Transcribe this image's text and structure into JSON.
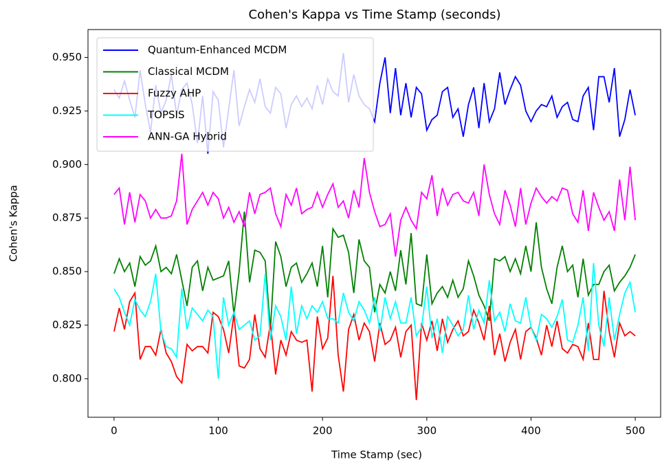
{
  "chart_data": {
    "type": "line",
    "title": "Cohen's Kappa vs Time Stamp (seconds)",
    "x_label": "Time Stamp (sec)",
    "y_label": "Cohen's Kappa",
    "x": [
      0,
      5,
      10,
      15,
      20,
      25,
      30,
      35,
      40,
      45,
      50,
      55,
      60,
      65,
      70,
      75,
      80,
      85,
      90,
      95,
      100,
      105,
      110,
      115,
      120,
      125,
      130,
      135,
      140,
      145,
      150,
      155,
      160,
      165,
      170,
      175,
      180,
      185,
      190,
      195,
      200,
      205,
      210,
      215,
      220,
      225,
      230,
      235,
      240,
      245,
      250,
      255,
      260,
      265,
      270,
      275,
      280,
      285,
      290,
      295,
      300,
      305,
      310,
      315,
      320,
      325,
      330,
      335,
      340,
      345,
      350,
      355,
      360,
      365,
      370,
      375,
      380,
      385,
      390,
      395,
      400,
      405,
      410,
      415,
      420,
      425,
      430,
      435,
      440,
      445,
      450,
      455,
      460,
      465,
      470,
      475,
      480,
      485,
      490,
      495,
      500
    ],
    "series": [
      {
        "name": "Quantum-Enhanced MCDM",
        "color": "#0000ff",
        "values": [
          0.935,
          0.931,
          0.939,
          0.93,
          0.922,
          0.944,
          0.928,
          0.915,
          0.937,
          0.924,
          0.93,
          0.942,
          0.923,
          0.935,
          0.938,
          0.928,
          0.91,
          0.932,
          0.905,
          0.934,
          0.93,
          0.908,
          0.926,
          0.944,
          0.918,
          0.927,
          0.935,
          0.929,
          0.94,
          0.927,
          0.924,
          0.936,
          0.933,
          0.917,
          0.928,
          0.932,
          0.927,
          0.931,
          0.926,
          0.937,
          0.928,
          0.94,
          0.934,
          0.932,
          0.952,
          0.929,
          0.942,
          0.932,
          0.928,
          0.926,
          0.92,
          0.938,
          0.95,
          0.924,
          0.945,
          0.923,
          0.938,
          0.922,
          0.936,
          0.933,
          0.916,
          0.921,
          0.923,
          0.934,
          0.936,
          0.922,
          0.926,
          0.913,
          0.928,
          0.936,
          0.917,
          0.938,
          0.92,
          0.926,
          0.943,
          0.928,
          0.935,
          0.941,
          0.937,
          0.925,
          0.92,
          0.925,
          0.928,
          0.927,
          0.932,
          0.922,
          0.927,
          0.929,
          0.921,
          0.92,
          0.932,
          0.936,
          0.916,
          0.941,
          0.941,
          0.929,
          0.945,
          0.913,
          0.921,
          0.935,
          0.923
        ]
      },
      {
        "name": "Classical MCDM",
        "color": "#008000",
        "values": [
          0.849,
          0.856,
          0.85,
          0.854,
          0.843,
          0.857,
          0.853,
          0.855,
          0.862,
          0.85,
          0.852,
          0.849,
          0.858,
          0.846,
          0.834,
          0.852,
          0.855,
          0.841,
          0.852,
          0.846,
          0.847,
          0.848,
          0.855,
          0.83,
          0.85,
          0.878,
          0.845,
          0.86,
          0.859,
          0.855,
          0.823,
          0.864,
          0.857,
          0.843,
          0.852,
          0.854,
          0.845,
          0.849,
          0.854,
          0.843,
          0.862,
          0.838,
          0.87,
          0.866,
          0.867,
          0.859,
          0.84,
          0.865,
          0.855,
          0.852,
          0.831,
          0.844,
          0.84,
          0.85,
          0.841,
          0.86,
          0.844,
          0.868,
          0.835,
          0.834,
          0.858,
          0.835,
          0.84,
          0.843,
          0.838,
          0.846,
          0.838,
          0.842,
          0.855,
          0.848,
          0.839,
          0.834,
          0.827,
          0.856,
          0.855,
          0.857,
          0.85,
          0.856,
          0.849,
          0.862,
          0.85,
          0.873,
          0.852,
          0.842,
          0.835,
          0.852,
          0.862,
          0.85,
          0.853,
          0.838,
          0.856,
          0.839,
          0.844,
          0.844,
          0.85,
          0.853,
          0.841,
          0.845,
          0.848,
          0.852,
          0.858
        ]
      },
      {
        "name": "Fuzzy AHP",
        "color": "#ff0000",
        "values": [
          0.822,
          0.833,
          0.823,
          0.836,
          0.84,
          0.809,
          0.815,
          0.815,
          0.811,
          0.823,
          0.812,
          0.808,
          0.801,
          0.798,
          0.816,
          0.813,
          0.815,
          0.815,
          0.812,
          0.831,
          0.829,
          0.823,
          0.812,
          0.83,
          0.806,
          0.805,
          0.809,
          0.83,
          0.814,
          0.81,
          0.826,
          0.802,
          0.818,
          0.811,
          0.822,
          0.818,
          0.817,
          0.818,
          0.794,
          0.829,
          0.814,
          0.819,
          0.848,
          0.811,
          0.794,
          0.823,
          0.83,
          0.818,
          0.826,
          0.822,
          0.808,
          0.826,
          0.816,
          0.818,
          0.824,
          0.81,
          0.822,
          0.825,
          0.79,
          0.826,
          0.818,
          0.827,
          0.813,
          0.828,
          0.817,
          0.823,
          0.827,
          0.82,
          0.822,
          0.832,
          0.826,
          0.818,
          0.834,
          0.811,
          0.821,
          0.808,
          0.817,
          0.823,
          0.809,
          0.822,
          0.824,
          0.819,
          0.811,
          0.825,
          0.815,
          0.827,
          0.814,
          0.812,
          0.816,
          0.815,
          0.809,
          0.826,
          0.809,
          0.809,
          0.841,
          0.822,
          0.81,
          0.826,
          0.82,
          0.822,
          0.82
        ]
      },
      {
        "name": "TOPSIS",
        "color": "#00ffff",
        "values": [
          0.842,
          0.838,
          0.831,
          0.825,
          0.837,
          0.832,
          0.829,
          0.836,
          0.849,
          0.822,
          0.815,
          0.814,
          0.81,
          0.842,
          0.823,
          0.833,
          0.83,
          0.827,
          0.832,
          0.829,
          0.8,
          0.838,
          0.825,
          0.831,
          0.823,
          0.825,
          0.827,
          0.818,
          0.82,
          0.849,
          0.818,
          0.834,
          0.829,
          0.818,
          0.843,
          0.821,
          0.834,
          0.828,
          0.834,
          0.831,
          0.836,
          0.828,
          0.828,
          0.826,
          0.84,
          0.831,
          0.827,
          0.836,
          0.832,
          0.826,
          0.838,
          0.822,
          0.838,
          0.828,
          0.836,
          0.826,
          0.826,
          0.838,
          0.82,
          0.824,
          0.843,
          0.819,
          0.828,
          0.812,
          0.829,
          0.825,
          0.82,
          0.823,
          0.839,
          0.823,
          0.832,
          0.826,
          0.846,
          0.827,
          0.831,
          0.822,
          0.835,
          0.827,
          0.826,
          0.838,
          0.824,
          0.818,
          0.83,
          0.828,
          0.824,
          0.829,
          0.837,
          0.818,
          0.817,
          0.825,
          0.838,
          0.813,
          0.854,
          0.825,
          0.815,
          0.838,
          0.818,
          0.83,
          0.84,
          0.845,
          0.831
        ]
      },
      {
        "name": "ANN-GA Hybrid",
        "color": "#ff00ff",
        "values": [
          0.886,
          0.889,
          0.872,
          0.887,
          0.873,
          0.886,
          0.883,
          0.875,
          0.879,
          0.875,
          0.875,
          0.876,
          0.883,
          0.905,
          0.872,
          0.879,
          0.883,
          0.887,
          0.881,
          0.887,
          0.884,
          0.875,
          0.88,
          0.873,
          0.878,
          0.871,
          0.887,
          0.877,
          0.886,
          0.887,
          0.889,
          0.877,
          0.871,
          0.886,
          0.881,
          0.889,
          0.877,
          0.879,
          0.88,
          0.887,
          0.88,
          0.886,
          0.891,
          0.88,
          0.883,
          0.875,
          0.888,
          0.88,
          0.903,
          0.887,
          0.878,
          0.871,
          0.872,
          0.877,
          0.857,
          0.874,
          0.88,
          0.874,
          0.87,
          0.887,
          0.884,
          0.895,
          0.876,
          0.889,
          0.881,
          0.886,
          0.887,
          0.883,
          0.882,
          0.887,
          0.876,
          0.9,
          0.886,
          0.877,
          0.872,
          0.888,
          0.881,
          0.871,
          0.889,
          0.872,
          0.882,
          0.889,
          0.885,
          0.882,
          0.885,
          0.883,
          0.889,
          0.888,
          0.877,
          0.873,
          0.888,
          0.869,
          0.887,
          0.88,
          0.874,
          0.878,
          0.869,
          0.893,
          0.874,
          0.899,
          0.874
        ]
      }
    ],
    "xlim": [
      -25,
      525
    ],
    "ylim": [
      0.782,
      0.963
    ],
    "xticks": [
      0,
      100,
      200,
      300,
      400,
      500
    ],
    "yticks": [
      {
        "value": 0.8,
        "label": "0.800"
      },
      0.825,
      {
        "value": 0.85,
        "label": "0.850"
      },
      0.875,
      {
        "value": 0.9,
        "label": "0.900"
      },
      0.925,
      {
        "value": 0.95,
        "label": "0.950"
      }
    ],
    "legend": "upper left",
    "grid": false
  }
}
